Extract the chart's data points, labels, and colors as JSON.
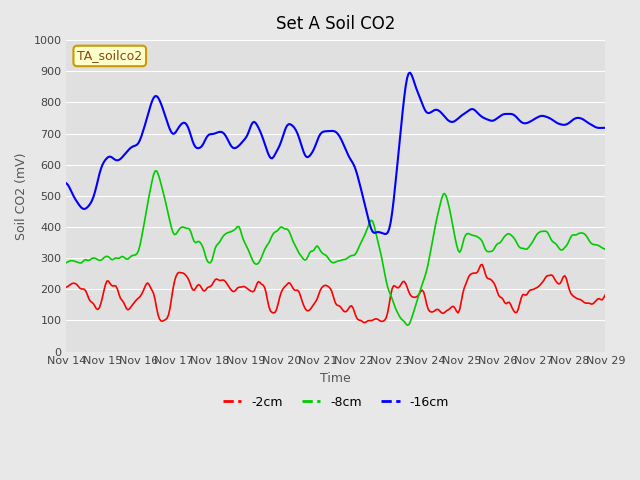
{
  "title": "Set A Soil CO2",
  "ylabel": "Soil CO2 (mV)",
  "xlabel": "Time",
  "dataset_label": "TA_soilco2",
  "ylim": [
    0,
    1000
  ],
  "background_color": "#e8e8e8",
  "plot_bg_color": "#e0e0e0",
  "series": {
    "cm2": {
      "color": "#ff0000",
      "label": "-2cm",
      "linestyle": "-",
      "linewidth": 1.2
    },
    "cm8": {
      "color": "#00cc00",
      "label": "-8cm",
      "linestyle": "-",
      "linewidth": 1.2
    },
    "cm16": {
      "color": "#0000ff",
      "label": "-16cm",
      "linestyle": "-",
      "linewidth": 1.5
    }
  },
  "xtick_labels": [
    "Nov 14",
    "Nov 15",
    "Nov 16",
    "Nov 17",
    "Nov 18",
    "Nov 19",
    "Nov 20",
    "Nov 21",
    "Nov 22",
    "Nov 23",
    "Nov 24",
    "Nov 25",
    "Nov 26",
    "Nov 27",
    "Nov 28",
    "Nov 29"
  ],
  "grid_color": "#ffffff",
  "legend_box_color": "#ffffcc",
  "legend_box_edge_color": "#cc9900"
}
